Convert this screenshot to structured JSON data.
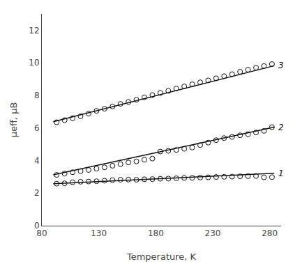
{
  "chart_data": {
    "type": "scatter",
    "xlabel": "Temperature, K",
    "ylabel": "μeff, μB",
    "xlim": [
      80,
      290
    ],
    "ylim": [
      0,
      13
    ],
    "xticks": [
      80,
      130,
      180,
      230,
      280
    ],
    "yticks": [
      0,
      2,
      4,
      6,
      8,
      10,
      12
    ],
    "grid": false,
    "series": [
      {
        "type": "line",
        "color": "#111111",
        "x": [
          90,
          284
        ],
        "values": [
          2.58,
          3.22
        ]
      },
      {
        "type": "scatter",
        "marker": "circle-open",
        "color": "#111111",
        "x": [
          93,
          100,
          107,
          114,
          121,
          128,
          135,
          142,
          149,
          156,
          163,
          170,
          177,
          184,
          191,
          198,
          205,
          212,
          219,
          226,
          233,
          240,
          247,
          254,
          261,
          268,
          275,
          282
        ],
        "values": [
          2.58,
          2.6,
          2.67,
          2.7,
          2.71,
          2.73,
          2.76,
          2.8,
          2.82,
          2.83,
          2.82,
          2.85,
          2.86,
          2.88,
          2.89,
          2.91,
          2.93,
          2.94,
          2.96,
          2.97,
          2.99,
          3.0,
          3.01,
          3.03,
          3.04,
          3.05,
          2.97,
          2.98
        ]
      },
      {
        "type": "line",
        "color": "#111111",
        "x": [
          90,
          284
        ],
        "values": [
          3.12,
          6.05
        ]
      },
      {
        "type": "scatter",
        "marker": "circle-open",
        "color": "#111111",
        "x": [
          93,
          100,
          107,
          114,
          121,
          128,
          135,
          142,
          149,
          156,
          163,
          170,
          177,
          184,
          191,
          198,
          205,
          212,
          219,
          226,
          233,
          240,
          247,
          254,
          261,
          268,
          275,
          282
        ],
        "values": [
          3.12,
          3.2,
          3.28,
          3.35,
          3.42,
          3.5,
          3.58,
          3.68,
          3.78,
          3.88,
          3.95,
          4.05,
          4.12,
          4.55,
          4.6,
          4.65,
          4.72,
          4.8,
          4.95,
          5.1,
          5.25,
          5.38,
          5.45,
          5.55,
          5.62,
          5.72,
          5.82,
          6.05
        ]
      },
      {
        "type": "line",
        "color": "#111111",
        "x": [
          90,
          284
        ],
        "values": [
          6.38,
          9.82
        ]
      },
      {
        "type": "scatter",
        "marker": "circle-open",
        "color": "#111111",
        "x": [
          93,
          100,
          107,
          114,
          121,
          128,
          135,
          142,
          149,
          156,
          163,
          170,
          177,
          184,
          191,
          198,
          205,
          212,
          219,
          226,
          233,
          240,
          247,
          254,
          261,
          268,
          275,
          282
        ],
        "values": [
          6.35,
          6.48,
          6.6,
          6.72,
          6.88,
          7.05,
          7.18,
          7.32,
          7.48,
          7.6,
          7.73,
          7.88,
          8.02,
          8.15,
          8.28,
          8.42,
          8.55,
          8.68,
          8.8,
          8.92,
          9.05,
          9.18,
          9.3,
          9.45,
          9.58,
          9.7,
          9.8,
          9.92
        ]
      }
    ],
    "annotations": [
      {
        "text": "1",
        "x": 284,
        "y": 3.22
      },
      {
        "text": "2",
        "x": 284,
        "y": 6.05
      },
      {
        "text": "3",
        "x": 284,
        "y": 9.82
      }
    ]
  }
}
